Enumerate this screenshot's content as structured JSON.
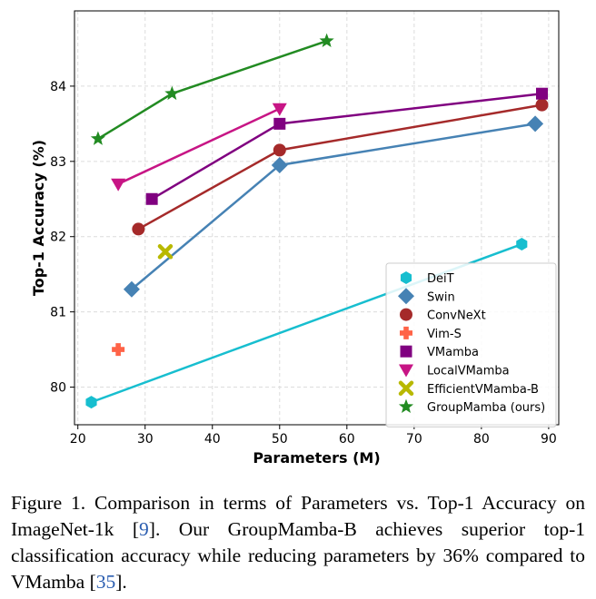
{
  "chart_data": {
    "type": "line",
    "xlabel": "Parameters (M)",
    "ylabel": "Top-1 Accuracy (%)",
    "xlim": [
      19.5,
      91.5
    ],
    "ylim": [
      79.5,
      85
    ],
    "xticks": [
      20,
      30,
      40,
      50,
      60,
      70,
      80,
      90
    ],
    "yticks": [
      80,
      81,
      82,
      83,
      84
    ],
    "legend_position": "lower-right",
    "series": [
      {
        "name": "DeiT",
        "color": "#17becf",
        "marker": "hexagon",
        "x": [
          22,
          86
        ],
        "y": [
          79.8,
          81.9
        ]
      },
      {
        "name": "Swin",
        "color": "#4682b4",
        "marker": "diamond",
        "x": [
          28,
          50,
          88
        ],
        "y": [
          81.3,
          82.95,
          83.5
        ]
      },
      {
        "name": "ConvNeXt",
        "color": "#a52a2a",
        "marker": "circle",
        "x": [
          29,
          50,
          89
        ],
        "y": [
          82.1,
          83.15,
          83.75
        ]
      },
      {
        "name": "Vim-S",
        "color": "#ff6347",
        "marker": "plus",
        "x": [
          26
        ],
        "y": [
          80.5
        ]
      },
      {
        "name": "VMamba",
        "color": "#800080",
        "marker": "square",
        "x": [
          31,
          50,
          89
        ],
        "y": [
          82.5,
          83.5,
          83.9
        ]
      },
      {
        "name": "LocalVMamba",
        "color": "#c71585",
        "marker": "triangle-down",
        "x": [
          26,
          50
        ],
        "y": [
          82.7,
          83.7
        ]
      },
      {
        "name": "EfficientVMamba-B",
        "color": "#b8b800",
        "marker": "x",
        "x": [
          33
        ],
        "y": [
          81.8
        ]
      },
      {
        "name": "GroupMamba (ours)",
        "color": "#228b22",
        "marker": "star",
        "x": [
          23,
          34,
          57
        ],
        "y": [
          83.3,
          83.9,
          84.6
        ]
      }
    ]
  },
  "caption": {
    "part1": "Figure 1. Comparison in terms of Parameters vs. Top-1 Accuracy on ImageNet-1k [",
    "ref1": "9",
    "part2": "]. Our GroupMamba-B achieves superior top-1 classification accuracy while reducing parameters by 36% compared to VMamba [",
    "ref2": "35",
    "part3": "]."
  }
}
